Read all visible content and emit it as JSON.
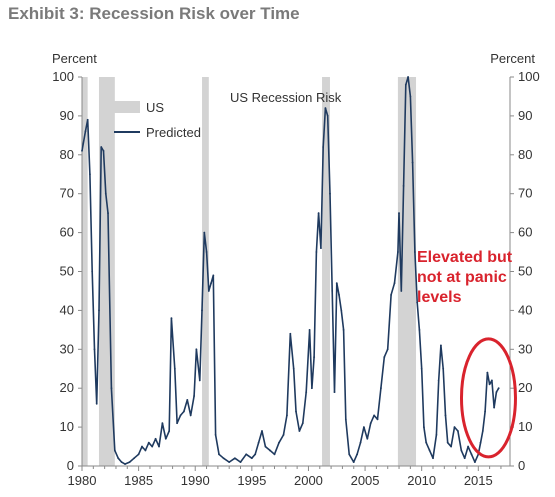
{
  "title": "Exhibit 3: Recession Risk over Time",
  "chart_data": {
    "type": "line",
    "title": "US Recession Risk",
    "ylabel_left": "Percent",
    "ylabel_right": "Percent",
    "xlim": [
      1980,
      2017.8
    ],
    "ylim": [
      0,
      100
    ],
    "x_ticks": [
      1980,
      1985,
      1990,
      1995,
      2000,
      2005,
      2010,
      2015
    ],
    "y_ticks": [
      0,
      10,
      20,
      30,
      40,
      50,
      60,
      70,
      80,
      90,
      100
    ],
    "grid": false,
    "legend": {
      "position": "top-left",
      "entries": [
        {
          "label": "US",
          "style": "band",
          "color": "#d3d3d3"
        },
        {
          "label": "Predicted",
          "style": "line",
          "color": "#1f3a5f"
        }
      ]
    },
    "recession_bands": [
      {
        "start": 1980.0,
        "end": 1980.5
      },
      {
        "start": 1981.5,
        "end": 1982.9
      },
      {
        "start": 1990.6,
        "end": 1991.2
      },
      {
        "start": 2001.2,
        "end": 2001.9
      },
      {
        "start": 2007.9,
        "end": 2009.5
      }
    ],
    "series": [
      {
        "name": "Predicted",
        "color": "#1f3a5f",
        "points": [
          [
            1980.0,
            81
          ],
          [
            1980.3,
            86
          ],
          [
            1980.5,
            89
          ],
          [
            1980.7,
            75
          ],
          [
            1980.9,
            50
          ],
          [
            1981.1,
            30
          ],
          [
            1981.3,
            16
          ],
          [
            1981.5,
            40
          ],
          [
            1981.7,
            82
          ],
          [
            1981.9,
            81
          ],
          [
            1982.1,
            70
          ],
          [
            1982.3,
            65
          ],
          [
            1982.6,
            20
          ],
          [
            1982.9,
            4
          ],
          [
            1983.2,
            2
          ],
          [
            1983.5,
            1
          ],
          [
            1983.8,
            0.5
          ],
          [
            1984.2,
            1
          ],
          [
            1984.6,
            2
          ],
          [
            1985.0,
            3
          ],
          [
            1985.3,
            5
          ],
          [
            1985.6,
            4
          ],
          [
            1985.9,
            6
          ],
          [
            1986.2,
            5
          ],
          [
            1986.5,
            7
          ],
          [
            1986.8,
            5
          ],
          [
            1987.1,
            11
          ],
          [
            1987.4,
            7
          ],
          [
            1987.7,
            9
          ],
          [
            1987.9,
            38
          ],
          [
            1988.2,
            25
          ],
          [
            1988.4,
            11
          ],
          [
            1988.7,
            13
          ],
          [
            1989.0,
            14
          ],
          [
            1989.3,
            17
          ],
          [
            1989.6,
            13
          ],
          [
            1989.9,
            18
          ],
          [
            1990.1,
            30
          ],
          [
            1990.4,
            22
          ],
          [
            1990.6,
            40
          ],
          [
            1990.8,
            60
          ],
          [
            1991.0,
            55
          ],
          [
            1991.2,
            45
          ],
          [
            1991.4,
            47
          ],
          [
            1991.6,
            49
          ],
          [
            1991.8,
            8
          ],
          [
            1992.1,
            3
          ],
          [
            1992.5,
            2
          ],
          [
            1993.0,
            1
          ],
          [
            1993.5,
            2
          ],
          [
            1994.0,
            1
          ],
          [
            1994.5,
            3
          ],
          [
            1995.0,
            2
          ],
          [
            1995.3,
            3
          ],
          [
            1995.6,
            6
          ],
          [
            1995.9,
            9
          ],
          [
            1996.2,
            5
          ],
          [
            1996.6,
            4
          ],
          [
            1997.0,
            3
          ],
          [
            1997.4,
            6
          ],
          [
            1997.8,
            8
          ],
          [
            1998.1,
            13
          ],
          [
            1998.4,
            34
          ],
          [
            1998.7,
            25
          ],
          [
            1998.9,
            14
          ],
          [
            1999.2,
            9
          ],
          [
            1999.5,
            11
          ],
          [
            1999.8,
            19
          ],
          [
            2000.1,
            35
          ],
          [
            2000.3,
            20
          ],
          [
            2000.5,
            28
          ],
          [
            2000.7,
            55
          ],
          [
            2000.9,
            65
          ],
          [
            2001.1,
            56
          ],
          [
            2001.3,
            82
          ],
          [
            2001.5,
            92
          ],
          [
            2001.7,
            90
          ],
          [
            2001.9,
            70
          ],
          [
            2002.1,
            45
          ],
          [
            2002.3,
            19
          ],
          [
            2002.5,
            47
          ],
          [
            2002.7,
            44
          ],
          [
            2002.9,
            40
          ],
          [
            2003.1,
            35
          ],
          [
            2003.3,
            12
          ],
          [
            2003.6,
            3
          ],
          [
            2004.0,
            1
          ],
          [
            2004.3,
            3
          ],
          [
            2004.6,
            6
          ],
          [
            2004.9,
            10
          ],
          [
            2005.2,
            7
          ],
          [
            2005.5,
            11
          ],
          [
            2005.8,
            13
          ],
          [
            2006.1,
            12
          ],
          [
            2006.4,
            20
          ],
          [
            2006.7,
            28
          ],
          [
            2007.0,
            30
          ],
          [
            2007.3,
            44
          ],
          [
            2007.6,
            47
          ],
          [
            2007.9,
            55
          ],
          [
            2008.0,
            65
          ],
          [
            2008.2,
            45
          ],
          [
            2008.4,
            72
          ],
          [
            2008.6,
            98
          ],
          [
            2008.8,
            100
          ],
          [
            2009.0,
            95
          ],
          [
            2009.2,
            78
          ],
          [
            2009.4,
            55
          ],
          [
            2009.6,
            42
          ],
          [
            2009.8,
            35
          ],
          [
            2010.0,
            25
          ],
          [
            2010.2,
            10
          ],
          [
            2010.4,
            6
          ],
          [
            2010.7,
            4
          ],
          [
            2011.0,
            2
          ],
          [
            2011.3,
            8
          ],
          [
            2011.5,
            22
          ],
          [
            2011.7,
            31
          ],
          [
            2011.9,
            25
          ],
          [
            2012.1,
            13
          ],
          [
            2012.3,
            6
          ],
          [
            2012.6,
            5
          ],
          [
            2012.9,
            10
          ],
          [
            2013.2,
            9
          ],
          [
            2013.5,
            4
          ],
          [
            2013.8,
            2
          ],
          [
            2014.1,
            5
          ],
          [
            2014.4,
            3
          ],
          [
            2014.7,
            1
          ],
          [
            2015.0,
            3
          ],
          [
            2015.2,
            6
          ],
          [
            2015.4,
            9
          ],
          [
            2015.6,
            14
          ],
          [
            2015.8,
            24
          ],
          [
            2016.0,
            21
          ],
          [
            2016.2,
            22
          ],
          [
            2016.4,
            15
          ],
          [
            2016.6,
            19
          ],
          [
            2016.8,
            20
          ]
        ]
      }
    ],
    "annotations": [
      {
        "lines": [
          "Elevated but",
          "not at panic",
          "levels"
        ],
        "color": "#d9232d"
      }
    ],
    "highlight_ellipse": {
      "x_center": 2015.9,
      "y_center": 17.5,
      "color": "#d9232d"
    }
  }
}
